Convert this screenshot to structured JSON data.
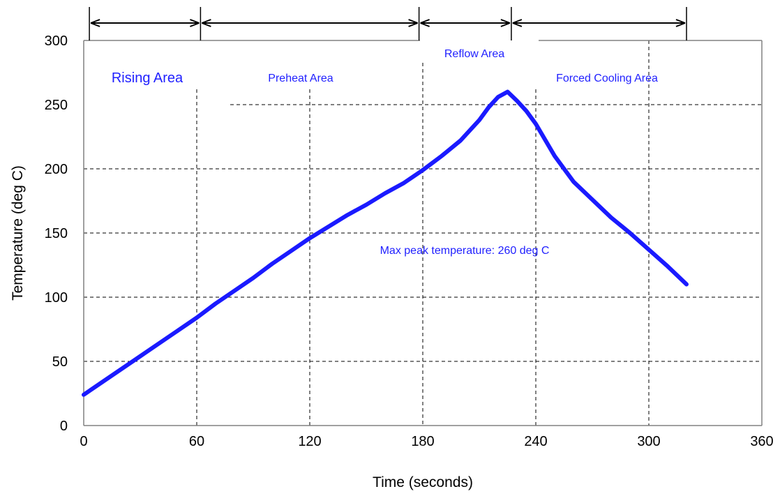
{
  "chart_data": {
    "type": "line",
    "title": "",
    "xlabel": "Time (seconds)",
    "ylabel": "Temperature (deg C)",
    "xlim": [
      0,
      360
    ],
    "ylim": [
      0,
      300
    ],
    "x_ticks": [
      0,
      60,
      120,
      180,
      240,
      300,
      360
    ],
    "y_ticks": [
      0,
      50,
      100,
      150,
      200,
      250,
      300
    ],
    "grid": true,
    "line_color": "#1a1aff",
    "label_color": "#1f1fff",
    "series": [
      {
        "x": [
          0,
          10,
          20,
          30,
          40,
          50,
          60,
          70,
          80,
          90,
          100,
          110,
          120,
          130,
          140,
          150,
          160,
          170,
          180,
          190,
          200,
          210,
          215,
          220,
          225,
          230,
          235,
          240,
          250,
          260,
          270,
          280,
          290,
          300,
          310,
          320
        ],
        "y": [
          24,
          34,
          44,
          54,
          64,
          74,
          84,
          95,
          105,
          115,
          126,
          136,
          146,
          155,
          164,
          172,
          181,
          189,
          199,
          210,
          222,
          238,
          248,
          256,
          260,
          253,
          245,
          235,
          210,
          190,
          176,
          162,
          150,
          137,
          124,
          110
        ]
      }
    ],
    "regions": [
      {
        "label": "Rising Area",
        "start": 3,
        "end": 62
      },
      {
        "label": "Preheat Area",
        "start": 62,
        "end": 178
      },
      {
        "label": "Reflow Area",
        "start": 178,
        "end": 227
      },
      {
        "label": "Forced Cooling Area",
        "start": 227,
        "end": 320
      }
    ],
    "annotations": [
      {
        "text": "Max peak temperature: 260 deg C"
      }
    ]
  }
}
